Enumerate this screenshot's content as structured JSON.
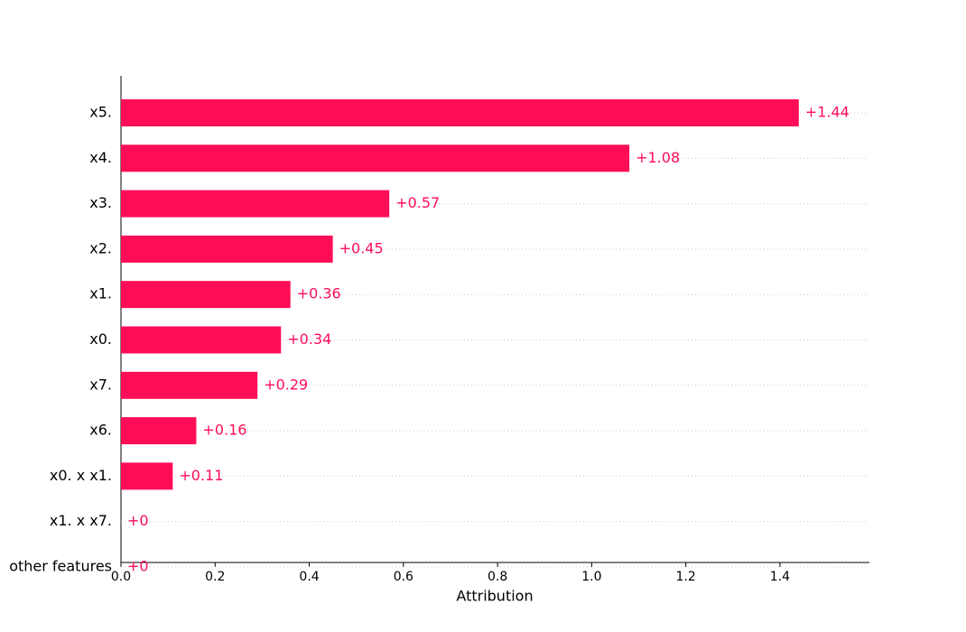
{
  "chart_data": {
    "type": "bar",
    "orientation": "horizontal",
    "categories": [
      "x5.",
      "x4.",
      "x3.",
      "x2.",
      "x1.",
      "x0.",
      "x7.",
      "x6.",
      "x0. x x1.",
      "x1. x x7.",
      "other features"
    ],
    "values": [
      1.44,
      1.08,
      0.57,
      0.45,
      0.36,
      0.34,
      0.29,
      0.16,
      0.11,
      0,
      0
    ],
    "value_labels": [
      "+1.44",
      "+1.08",
      "+0.57",
      "+0.45",
      "+0.36",
      "+0.34",
      "+0.29",
      "+0.16",
      "+0.11",
      "+0",
      "+0"
    ],
    "color": "#ff0d57",
    "xlabel": "Attribution",
    "xlim": [
      0,
      1.59
    ],
    "xticks": [
      {
        "value": 0,
        "label": "0.0"
      },
      0.2,
      0.4,
      0.6,
      0.8,
      {
        "value": 1,
        "label": "1.0"
      },
      1.2,
      1.4
    ]
  }
}
